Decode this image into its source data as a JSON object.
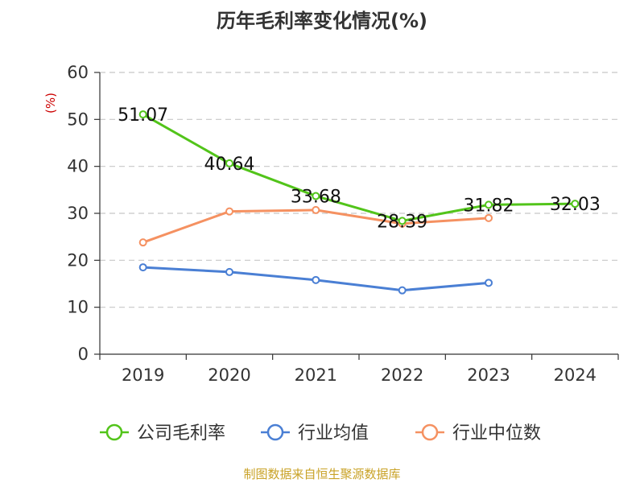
{
  "chart_data": {
    "type": "line",
    "title": "历年毛利率变化情况(%)",
    "ylabel": "(%)",
    "xlabel": "",
    "categories": [
      "2019",
      "2020",
      "2021",
      "2022",
      "2023",
      "2024"
    ],
    "ylim": [
      0,
      60
    ],
    "yticks": [
      0,
      10,
      20,
      30,
      40,
      50,
      60
    ],
    "grid": true,
    "legend_position": "bottom",
    "series": [
      {
        "name": "公司毛利率",
        "color": "#52c41a",
        "values": [
          51.07,
          40.64,
          33.68,
          28.39,
          31.82,
          32.03
        ],
        "labels": [
          "51.07",
          "40.64",
          "33.68",
          "28.39",
          "31.82",
          "32.03"
        ]
      },
      {
        "name": "行业均值",
        "color": "#4a7fd4",
        "values": [
          18.5,
          17.5,
          15.8,
          13.6,
          15.2,
          null
        ],
        "labels": null
      },
      {
        "name": "行业中位数",
        "color": "#f59161",
        "values": [
          23.8,
          30.4,
          30.7,
          27.8,
          29.0,
          null
        ],
        "labels": null
      }
    ]
  },
  "source": "制图数据来自恒生聚源数据库"
}
